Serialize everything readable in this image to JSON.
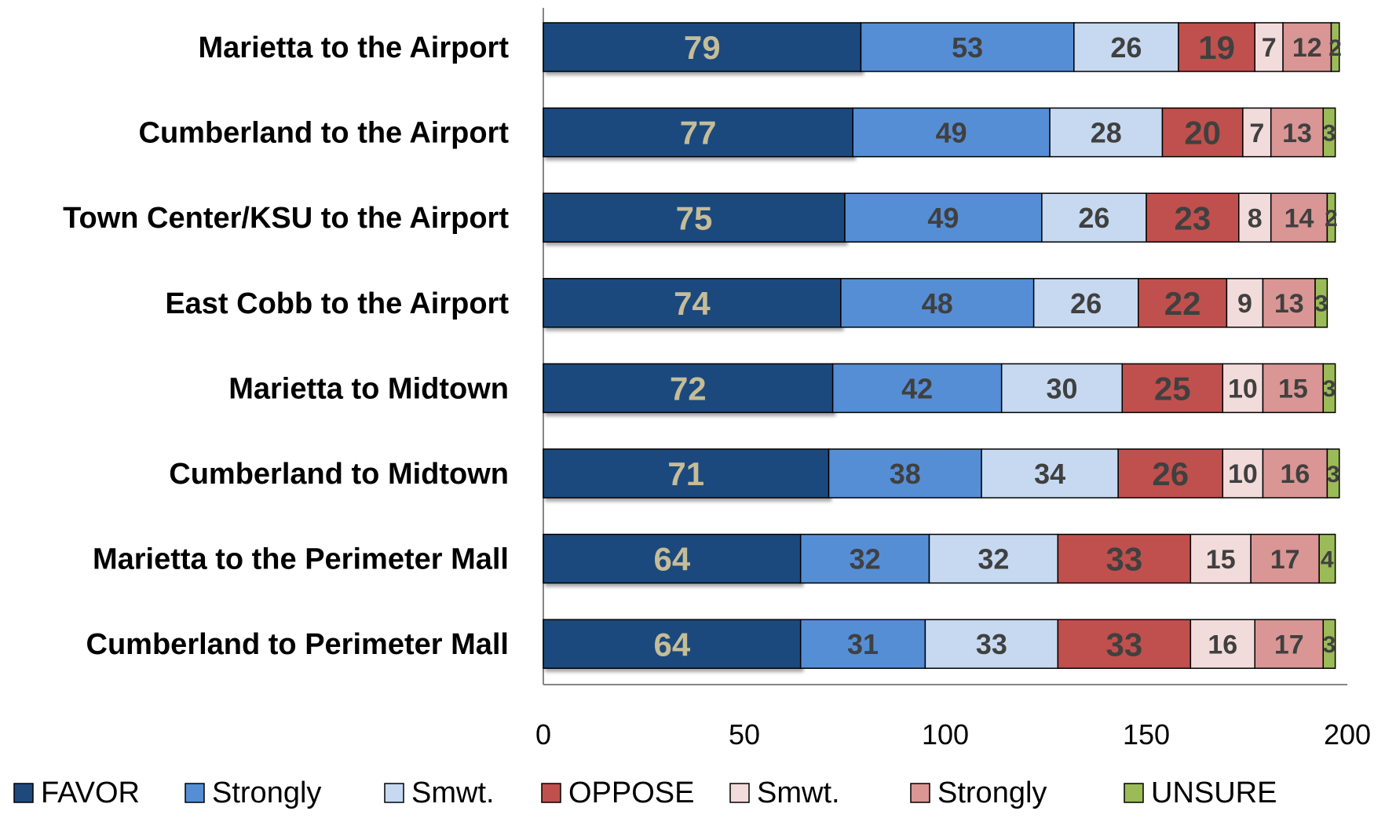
{
  "chart_data": {
    "type": "bar",
    "orientation": "horizontal",
    "stacked": true,
    "categories": [
      "Marietta to the Airport",
      "Cumberland to the Airport",
      "Town Center/KSU to the Airport",
      "East Cobb to the Airport",
      "Marietta to Midtown",
      "Cumberland to Midtown",
      "Marietta to the Perimeter Mall",
      "Cumberland to Perimeter Mall"
    ],
    "series": [
      {
        "name": "FAVOR",
        "color": "#1f497d",
        "label_color": "#c4bd97",
        "values": [
          79,
          77,
          75,
          74,
          72,
          71,
          64,
          64
        ]
      },
      {
        "name": "Strongly",
        "color": "#558ed5",
        "label_color": "#404040",
        "values": [
          53,
          49,
          49,
          48,
          42,
          38,
          32,
          31
        ]
      },
      {
        "name": "Smwt.",
        "color": "#c6d9f1",
        "label_color": "#404040",
        "values": [
          26,
          28,
          26,
          26,
          30,
          34,
          32,
          33
        ]
      },
      {
        "name": "OPPOSE",
        "color": "#c0504d",
        "label_color": "#404040",
        "values": [
          19,
          20,
          23,
          22,
          25,
          26,
          33,
          33
        ]
      },
      {
        "name": "Smwt.",
        "color": "#f2dcdb",
        "label_color": "#404040",
        "values": [
          7,
          7,
          8,
          9,
          10,
          10,
          15,
          16
        ]
      },
      {
        "name": "Strongly",
        "color": "#d99694",
        "label_color": "#404040",
        "values": [
          12,
          13,
          14,
          13,
          15,
          16,
          17,
          17
        ]
      },
      {
        "name": "UNSURE",
        "color": "#9bbb59",
        "label_color": "#404040",
        "values": [
          2,
          3,
          2,
          3,
          3,
          3,
          4,
          3
        ]
      }
    ],
    "xlim": [
      0,
      200
    ],
    "xticks": [
      0,
      50,
      100,
      150,
      200
    ],
    "grid": false,
    "legend_position": "bottom"
  }
}
